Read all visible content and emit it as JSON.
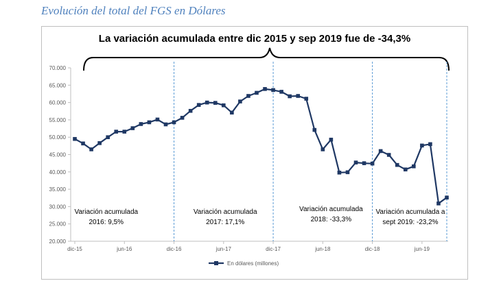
{
  "page_title": "Evolución del total del FGS en Dólares",
  "chart_data": {
    "type": "line",
    "title": "La variación acumulada  entre dic 2015 y sep 2019 fue de  -34,3%",
    "xlabel": "",
    "ylabel": "",
    "ylim": [
      20000,
      70000
    ],
    "y_ticks": [
      "20.000",
      "25.000",
      "30.000",
      "35.000",
      "40.000",
      "45.000",
      "50.000",
      "55.000",
      "60.000",
      "65.000",
      "70.000"
    ],
    "x_tick_labels": [
      {
        "label": "dic-15",
        "index": 0
      },
      {
        "label": "jun-16",
        "index": 6
      },
      {
        "label": "dic-16",
        "index": 12
      },
      {
        "label": "jun-17",
        "index": 18
      },
      {
        "label": "dic-17",
        "index": 24
      },
      {
        "label": "jun-18",
        "index": 30
      },
      {
        "label": "dic-18",
        "index": 36
      },
      {
        "label": "jun-19",
        "index": 42
      }
    ],
    "series": [
      {
        "name": "En dólares (millones)",
        "color": "#1f3864",
        "values": [
          49500,
          48200,
          46500,
          48300,
          50000,
          51600,
          51600,
          52600,
          53800,
          54300,
          55100,
          53700,
          54300,
          55600,
          57600,
          59300,
          60000,
          59900,
          59200,
          57100,
          60300,
          61900,
          62800,
          63900,
          63600,
          63100,
          61800,
          61900,
          61100,
          52100,
          46500,
          49300,
          39800,
          39900,
          42700,
          42500,
          42400,
          46000,
          44900,
          42000,
          40700,
          41600,
          47600,
          48000,
          30900,
          32600
        ]
      }
    ],
    "dividers": [
      12,
      24,
      36,
      45
    ],
    "annotations": [
      {
        "line1": "Variación acumulada",
        "line2": "2016:  9,5%"
      },
      {
        "line1": "Variación acumulada",
        "line2": "2017: 17,1%"
      },
      {
        "line1": "Variación acumulada",
        "line2": "2018:  -33,3%"
      },
      {
        "line1": "Variación acumulada a",
        "line2": "sept 2019:  -23,2%"
      }
    ],
    "legend_position": "bottom",
    "grid": false
  }
}
